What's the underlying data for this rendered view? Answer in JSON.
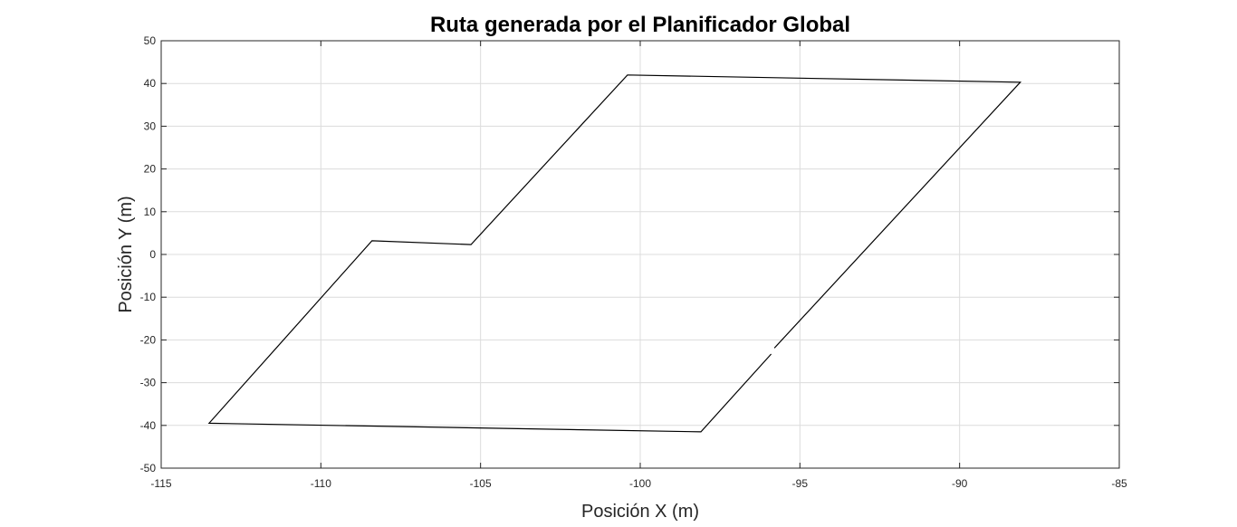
{
  "chart_data": {
    "type": "line",
    "title": "Ruta generada por el Planificador Global",
    "xlabel": "Posición X (m)",
    "ylabel": "Posición Y (m)",
    "xlim": [
      -115,
      -85
    ],
    "ylim": [
      -50,
      50
    ],
    "xticks": [
      -115,
      -110,
      -105,
      -100,
      -95,
      -90,
      -85
    ],
    "yticks": [
      -50,
      -40,
      -30,
      -20,
      -10,
      0,
      10,
      20,
      30,
      40,
      50
    ],
    "xtick_labels": [
      "-115",
      "-110",
      "-105",
      "-100",
      "-95",
      "-90",
      "-85"
    ],
    "ytick_labels": [
      "-50",
      "-40",
      "-30",
      "-20",
      "-10",
      "0",
      "10",
      "20",
      "30",
      "40",
      "50"
    ],
    "grid": true,
    "line_color": "#000000",
    "series": [
      {
        "segments": [
          {
            "x": [
              -95.9,
              -98.1,
              -113.5,
              -108.4,
              -105.3,
              -100.4,
              -88.1,
              -95.8
            ],
            "y": [
              -23.3,
              -41.5,
              -39.5,
              3.2,
              2.3,
              42.0,
              40.3,
              -21.9
            ]
          }
        ]
      }
    ]
  }
}
